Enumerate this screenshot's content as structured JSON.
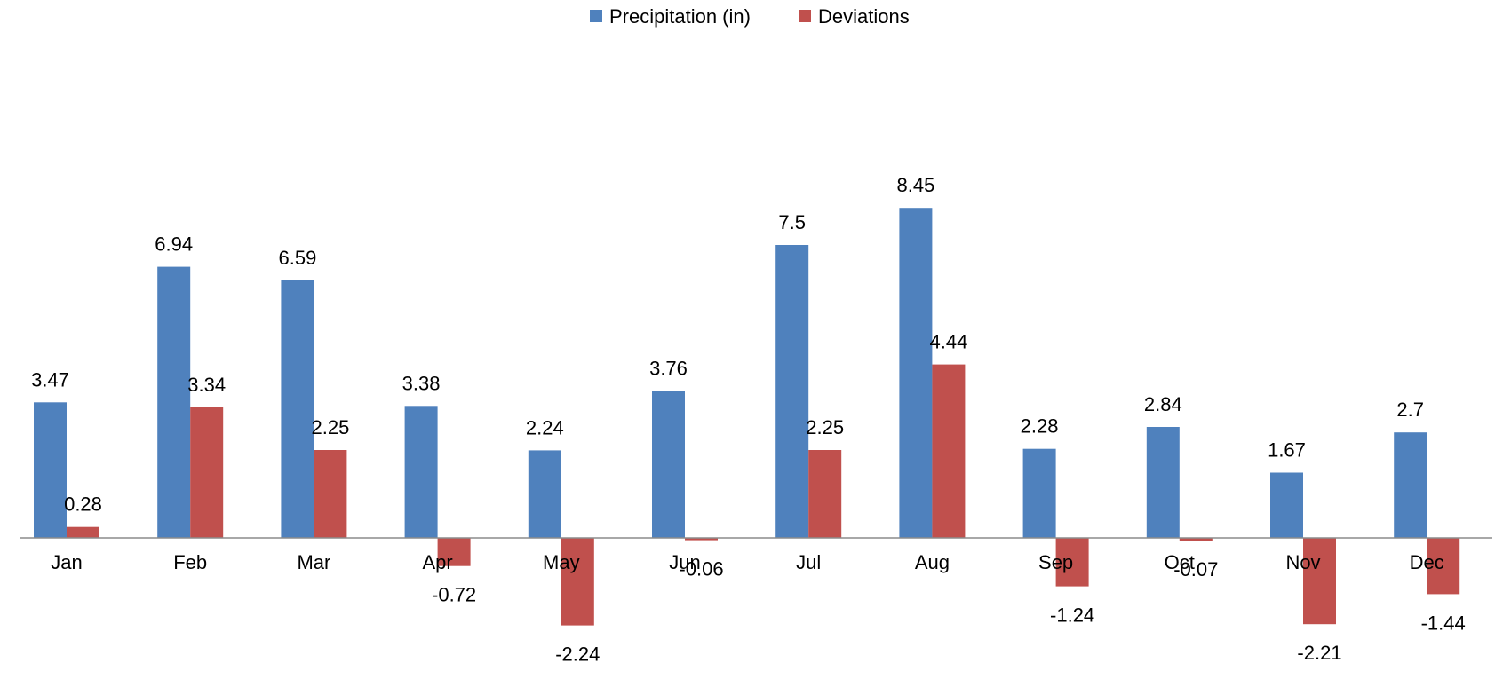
{
  "chart_data": {
    "type": "bar",
    "title": "",
    "xlabel": "",
    "ylabel": "",
    "categories": [
      "Jan",
      "Feb",
      "Mar",
      "Apr",
      "May",
      "Jun",
      "Jul",
      "Aug",
      "Sep",
      "Oct",
      "Nov",
      "Dec"
    ],
    "series": [
      {
        "name": "Precipitation (in)",
        "color": "#4f81bd",
        "values": [
          3.47,
          6.94,
          6.59,
          3.38,
          2.24,
          3.76,
          7.5,
          8.45,
          2.28,
          2.84,
          1.67,
          2.7
        ],
        "labels": [
          "3.47",
          "6.94",
          "6.59",
          "3.38",
          "2.24",
          "3.76",
          "7.5",
          "8.45",
          "2.28",
          "2.84",
          "1.67",
          "2.7"
        ]
      },
      {
        "name": "Deviations",
        "color": "#c0504d",
        "values": [
          0.28,
          3.34,
          2.25,
          -0.72,
          -2.24,
          -0.06,
          2.25,
          4.44,
          -1.24,
          -0.07,
          -2.21,
          -1.44
        ],
        "labels": [
          "0.28",
          "3.34",
          "2.25",
          "-0.72",
          "-2.24",
          "-0.06",
          "2.25",
          "4.44",
          "-1.24",
          "-0.07",
          "-2.21",
          "-1.44"
        ]
      }
    ],
    "ylim": [
      -3,
      9.5
    ],
    "grid": false,
    "legend_position": "top-center",
    "y_axis_visible": false
  }
}
